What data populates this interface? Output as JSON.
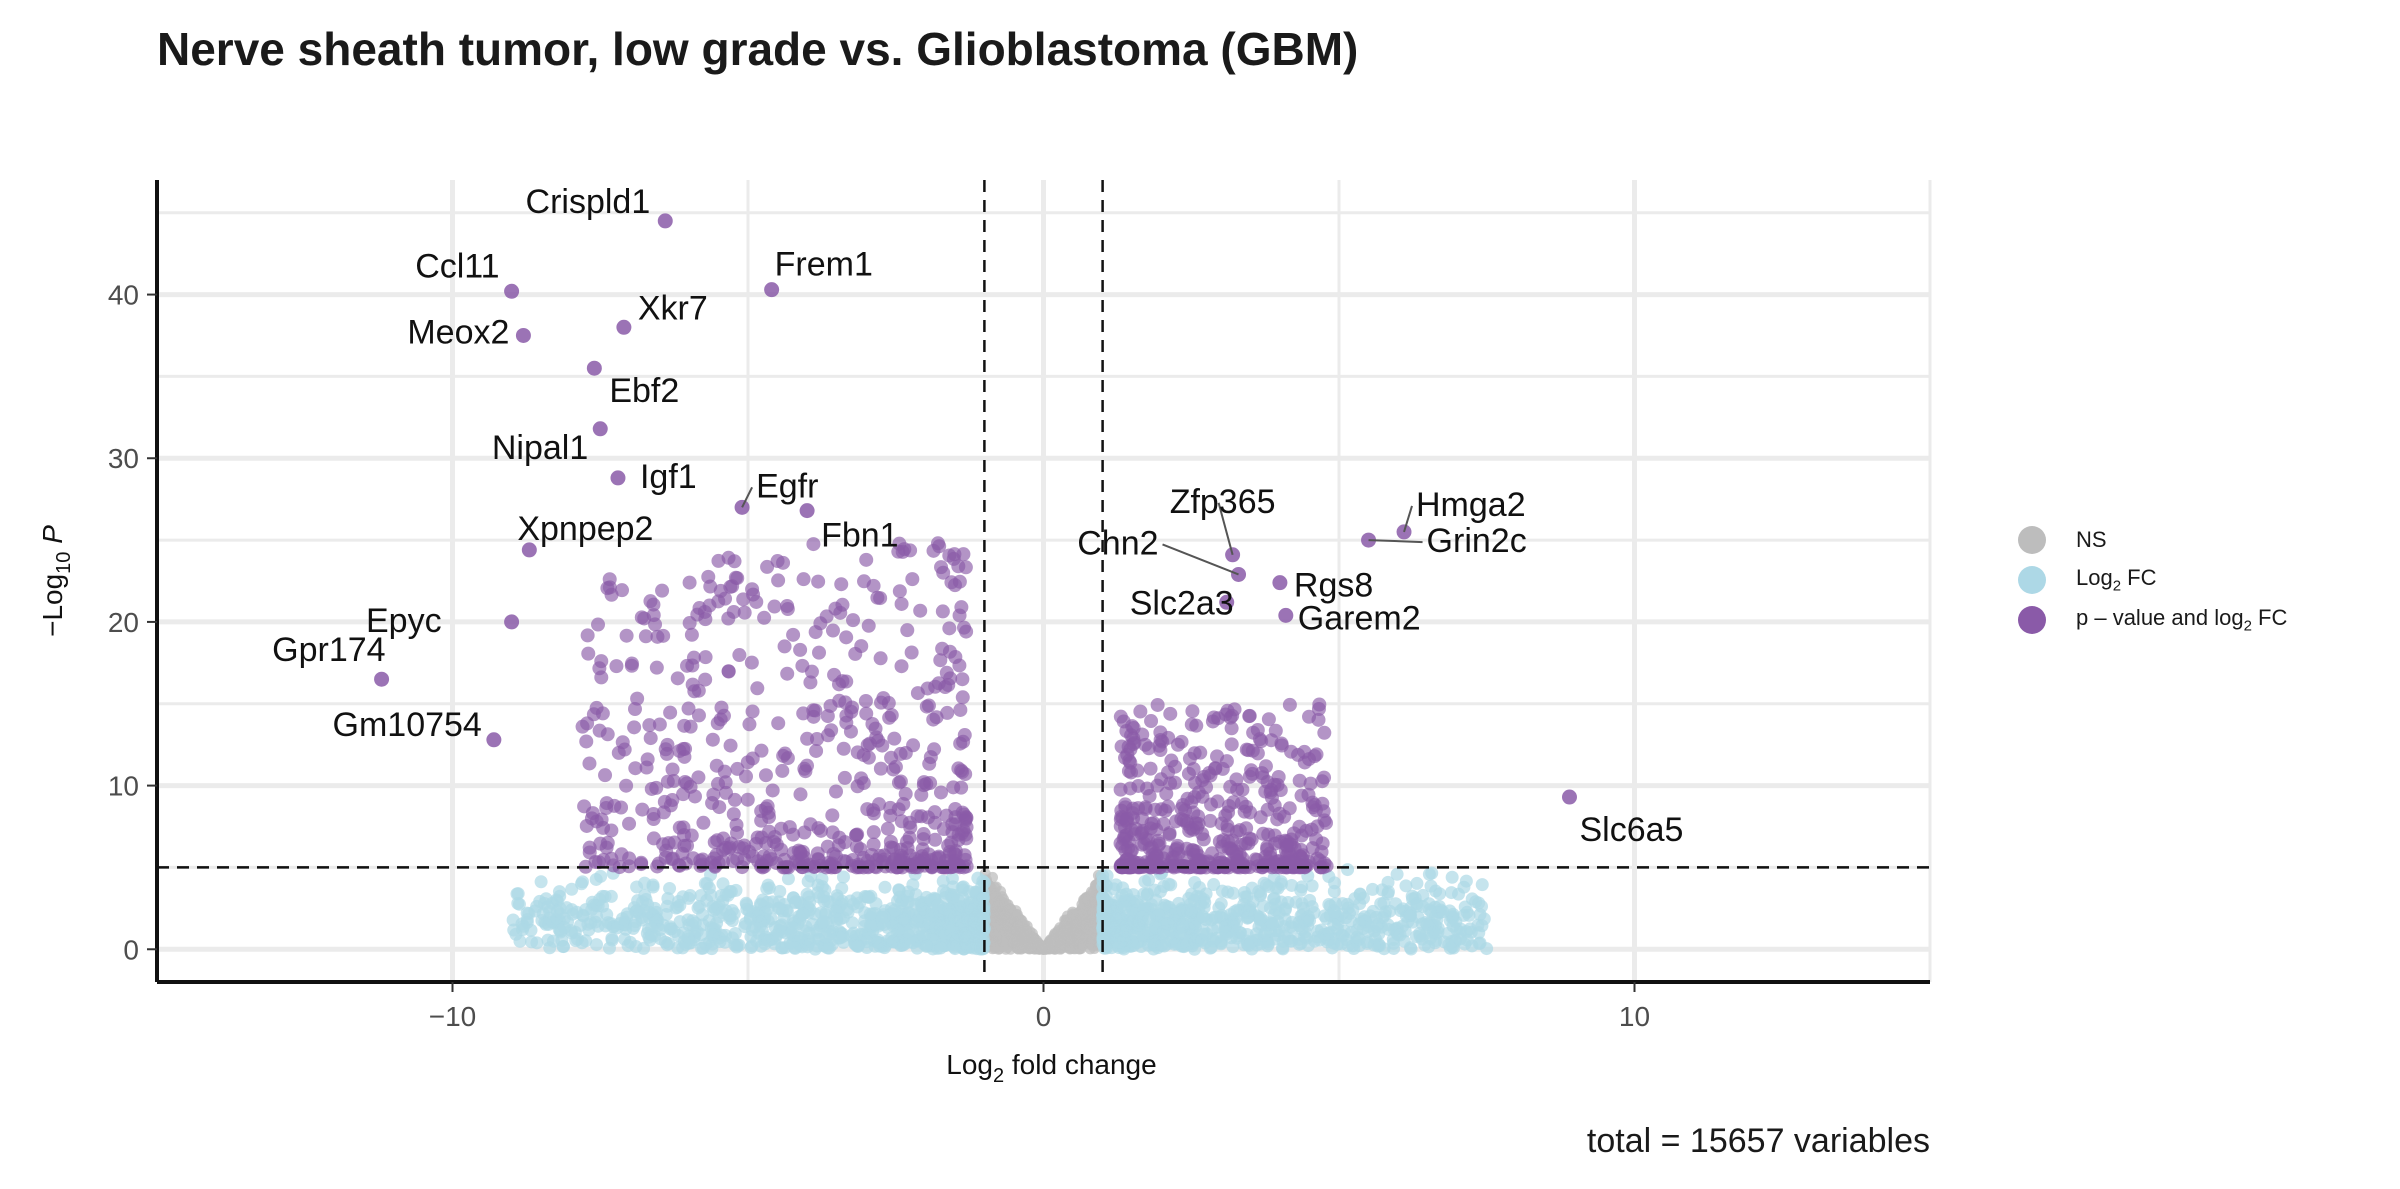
{
  "chart_data": {
    "type": "scatter",
    "title": "Nerve sheath tumor, low grade vs. Glioblastoma (GBM)",
    "xlabel": "Log2 fold change",
    "ylabel": "−Log10 P",
    "caption": "total = 15657 variables",
    "xlim": [
      -15,
      15
    ],
    "ylim": [
      -2,
      47
    ],
    "x_ticks": [
      -10,
      0,
      10
    ],
    "y_ticks": [
      0,
      10,
      20,
      30,
      40
    ],
    "grid": true,
    "legend_position": "right",
    "thresholds": {
      "log2fc": [
        -1,
        1
      ],
      "neg_log10_p": 5
    },
    "series": [
      {
        "name": "NS",
        "color": "#bdbdbd"
      },
      {
        "name": "Log2 FC",
        "color": "#add8e6"
      },
      {
        "name": "p – value and log2 FC",
        "color": "#8a5aa8"
      }
    ],
    "labeled_points": [
      {
        "label": "Crispld1",
        "x": -6.4,
        "y": 44.5
      },
      {
        "label": "Ccl11",
        "x": -9.0,
        "y": 40.2
      },
      {
        "label": "Frem1",
        "x": -4.6,
        "y": 40.3
      },
      {
        "label": "Xkr7",
        "x": -7.1,
        "y": 38.0
      },
      {
        "label": "Meox2",
        "x": -8.8,
        "y": 37.5
      },
      {
        "label": "Ebf2",
        "x": -7.6,
        "y": 35.5
      },
      {
        "label": "Nipal1",
        "x": -7.5,
        "y": 31.8
      },
      {
        "label": "Igf1",
        "x": -7.2,
        "y": 28.8
      },
      {
        "label": "Egfr",
        "x": -5.1,
        "y": 27.0
      },
      {
        "label": "Fbn1",
        "x": -4.0,
        "y": 26.8
      },
      {
        "label": "Xpnpep2",
        "x": -8.7,
        "y": 24.4
      },
      {
        "label": "Epyc",
        "x": -9.0,
        "y": 20.0
      },
      {
        "label": "Gpr174",
        "x": -11.2,
        "y": 16.5
      },
      {
        "label": "Gm10754",
        "x": -9.3,
        "y": 12.8
      },
      {
        "label": "Zfp365",
        "x": 3.2,
        "y": 24.1
      },
      {
        "label": "Hmga2",
        "x": 6.1,
        "y": 25.5
      },
      {
        "label": "Chn2",
        "x": 3.3,
        "y": 22.9
      },
      {
        "label": "Rgs8",
        "x": 4.0,
        "y": 22.4
      },
      {
        "label": "Grin2c",
        "x": 5.5,
        "y": 25.0
      },
      {
        "label": "Slc2a3",
        "x": 3.1,
        "y": 21.2
      },
      {
        "label": "Garem2",
        "x": 4.1,
        "y": 20.4
      },
      {
        "label": "Slc6a5",
        "x": 8.9,
        "y": 9.3
      }
    ]
  }
}
